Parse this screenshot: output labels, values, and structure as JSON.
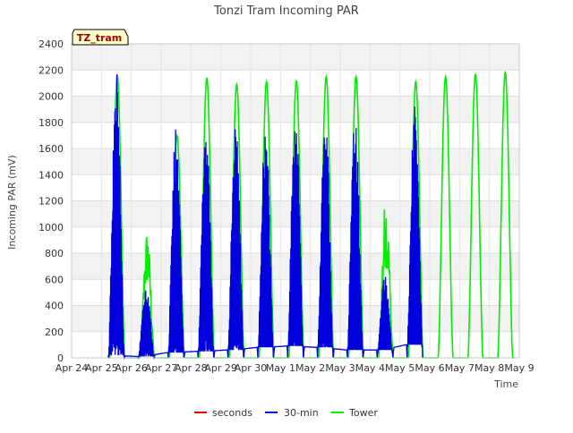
{
  "chart_data": {
    "type": "line",
    "title": "Tonzi Tram Incoming PAR",
    "xlabel": "Time",
    "ylabel": "Incoming PAR (mV)",
    "annotation": "TZ_tram",
    "ylim": [
      0,
      2400
    ],
    "yticks": [
      0,
      200,
      400,
      600,
      800,
      1000,
      1200,
      1400,
      1600,
      1800,
      2000,
      2200,
      2400
    ],
    "x_tick_labels": [
      "Apr 24",
      "Apr 25",
      "Apr 26",
      "Apr 27",
      "Apr 28",
      "Apr 29",
      "Apr 30",
      "May 1",
      "May 2",
      "May 3",
      "May 4",
      "May 5",
      "May 6",
      "May 7",
      "May 8",
      "May 9"
    ],
    "xlim": [
      "Apr 24",
      "May 9"
    ],
    "grid": true,
    "legend_position": "bottom",
    "colors": {
      "seconds": "#dd0000",
      "30-min": "#0000dd",
      "Tower": "#00ee00",
      "band": "#f2f2f2",
      "annotation_fill": "#ffffcc",
      "annotation_text": "#990000"
    },
    "series": [
      {
        "name": "seconds",
        "description_points": []
      },
      {
        "name": "30-min",
        "daily_peaks": [
          {
            "date": "Apr 25",
            "peak": 2200
          },
          {
            "date": "Apr 26",
            "peak": 550
          },
          {
            "date": "Apr 27",
            "peak": 1840
          },
          {
            "date": "Apr 28",
            "peak": 1840
          },
          {
            "date": "Apr 29",
            "peak": 1800
          },
          {
            "date": "Apr 30",
            "peak": 1850
          },
          {
            "date": "May 1",
            "peak": 1930
          },
          {
            "date": "May 2",
            "peak": 1900
          },
          {
            "date": "May 3",
            "peak": 1850
          },
          {
            "date": "May 4",
            "peak": 650
          },
          {
            "date": "May 5",
            "peak": 1920
          }
        ],
        "night_baseline": [
          {
            "date": "Apr 25",
            "value": 20
          },
          {
            "date": "Apr 26",
            "value": 10
          },
          {
            "date": "Apr 27",
            "value": 40
          },
          {
            "date": "Apr 28",
            "value": 50
          },
          {
            "date": "Apr 29",
            "value": 60
          },
          {
            "date": "Apr 30",
            "value": 80
          },
          {
            "date": "May 1",
            "value": 90
          },
          {
            "date": "May 2",
            "value": 80
          },
          {
            "date": "May 3",
            "value": 60
          },
          {
            "date": "May 4",
            "value": 60
          },
          {
            "date": "May 5",
            "value": 100
          }
        ]
      },
      {
        "name": "Tower",
        "daily_peaks": [
          {
            "date": "Apr 25",
            "peak": 2160
          },
          {
            "date": "Apr 26",
            "peak": 990
          },
          {
            "date": "Apr 27",
            "peak": 1700
          },
          {
            "date": "Apr 28",
            "peak": 2140
          },
          {
            "date": "Apr 29",
            "peak": 2090
          },
          {
            "date": "Apr 30",
            "peak": 2110
          },
          {
            "date": "May 1",
            "peak": 2120
          },
          {
            "date": "May 2",
            "peak": 2150
          },
          {
            "date": "May 3",
            "peak": 2150
          },
          {
            "date": "May 4",
            "peak": 1260
          },
          {
            "date": "May 5",
            "peak": 2110
          },
          {
            "date": "May 6",
            "peak": 2150
          },
          {
            "date": "May 7",
            "peak": 2170
          },
          {
            "date": "May 8",
            "peak": 2180
          }
        ]
      }
    ]
  }
}
